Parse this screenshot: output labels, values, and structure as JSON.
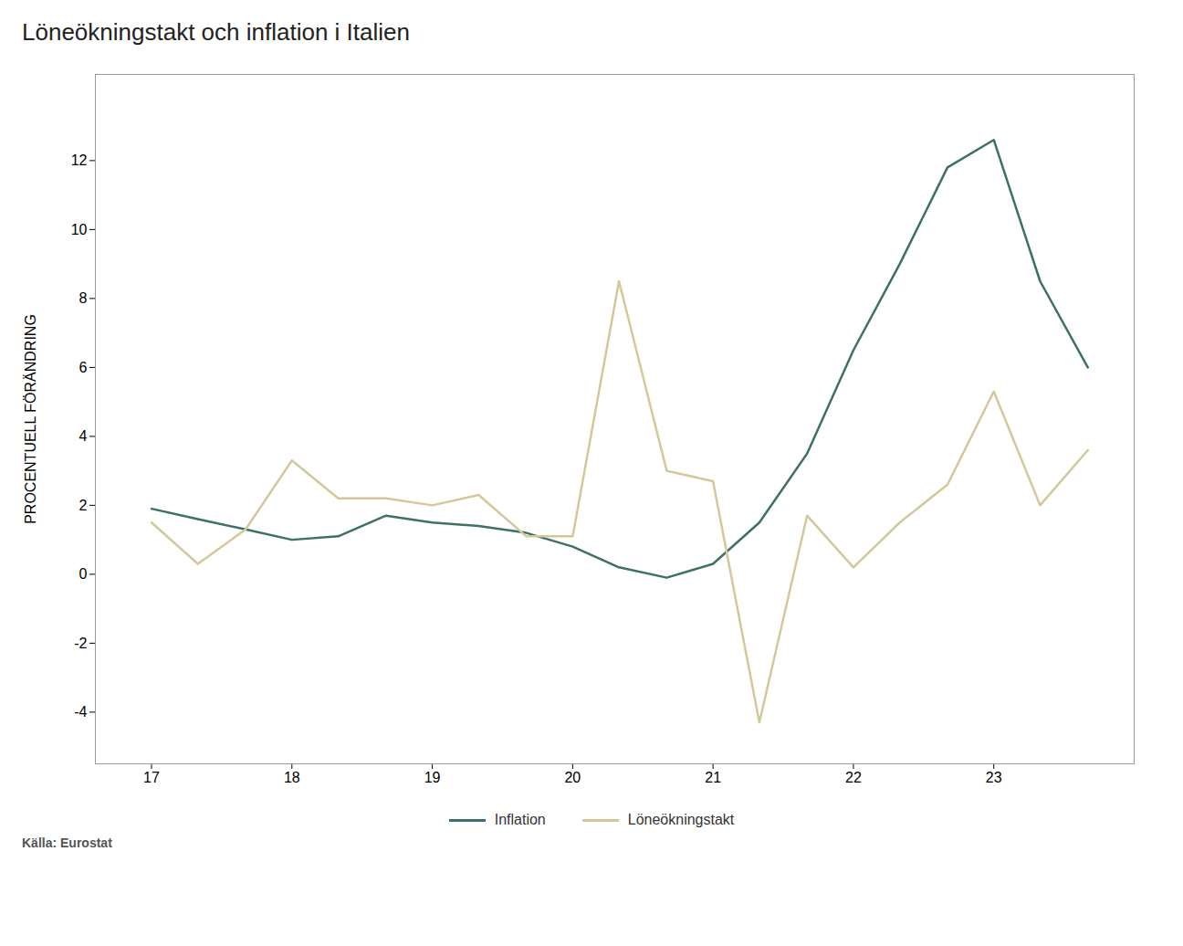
{
  "chart_data": {
    "type": "line",
    "title": "Löneökningstakt och inflation i Italien",
    "ylabel": "PROCENTUELL FÖRÄNDRING",
    "source": "Källa: Eurostat",
    "x": [
      2017.0,
      2017.33,
      2017.67,
      2018.0,
      2018.33,
      2018.67,
      2019.0,
      2019.33,
      2019.67,
      2020.0,
      2020.33,
      2020.67,
      2021.0,
      2021.33,
      2021.67,
      2022.0,
      2022.33,
      2022.67,
      2023.0,
      2023.33,
      2023.67
    ],
    "series": [
      {
        "name": "Inflation",
        "color": "#3d7068",
        "values": [
          1.9,
          1.6,
          1.3,
          1.0,
          1.1,
          1.7,
          1.5,
          1.4,
          1.2,
          0.8,
          0.2,
          -0.1,
          0.3,
          1.5,
          3.5,
          6.5,
          9.0,
          11.8,
          12.6,
          8.5,
          6.0
        ]
      },
      {
        "name": "Löneökningstakt",
        "color": "#d4c89a",
        "values": [
          1.5,
          0.3,
          1.3,
          3.3,
          2.2,
          2.2,
          2.0,
          2.3,
          1.1,
          1.1,
          8.5,
          3.0,
          2.7,
          -4.3,
          1.7,
          0.2,
          1.5,
          2.6,
          5.3,
          2.0,
          3.6
        ]
      }
    ],
    "xlim": [
      2016.6,
      2024.0
    ],
    "xticks": [
      {
        "value": 2017,
        "label": "17"
      },
      {
        "value": 2018,
        "label": "18"
      },
      {
        "value": 2019,
        "label": "19"
      },
      {
        "value": 2020,
        "label": "20"
      },
      {
        "value": 2021,
        "label": "21"
      },
      {
        "value": 2022,
        "label": "22"
      },
      {
        "value": 2023,
        "label": "23"
      }
    ],
    "ylim": [
      -5.5,
      14.5
    ],
    "yticks": [
      -4,
      -2,
      0,
      2,
      4,
      6,
      8,
      10,
      12
    ],
    "grid": false,
    "legend": "bottom"
  }
}
